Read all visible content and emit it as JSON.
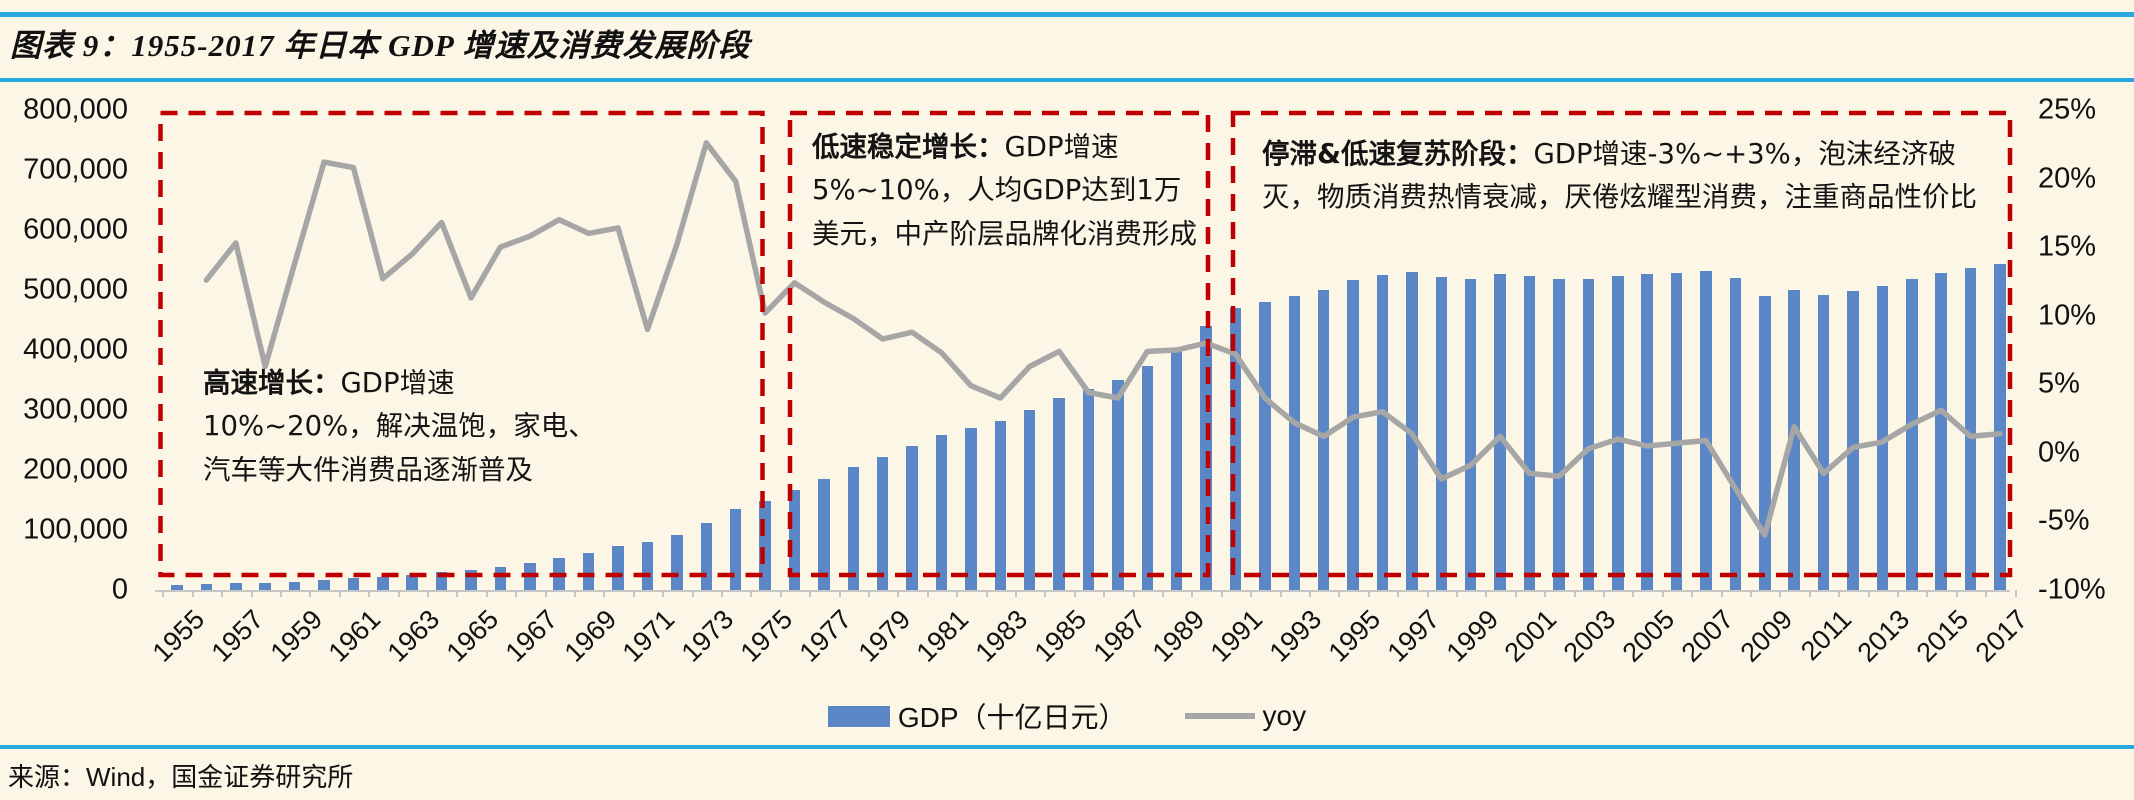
{
  "page": {
    "figure_title": "图表 9：1955-2017 年日本 GDP 增速及消费发展阶段",
    "source": "来源：Wind，国金证券研究所"
  },
  "colors": {
    "background": "#FCF6E6",
    "rule_blue": "#2AA7DF",
    "bar_blue": "#5B87C6",
    "line_gray": "#A6A6A6",
    "phase_box_red": "#C00000",
    "axis_gray": "#C6C6C6"
  },
  "chart_data": {
    "type": "bar+line combo",
    "title": "1955-2017 年日本 GDP 增速及消费发展阶段",
    "categories": [
      1955,
      1956,
      1957,
      1958,
      1959,
      1960,
      1961,
      1962,
      1963,
      1964,
      1965,
      1966,
      1967,
      1968,
      1969,
      1970,
      1971,
      1972,
      1973,
      1974,
      1975,
      1976,
      1977,
      1978,
      1979,
      1980,
      1981,
      1982,
      1983,
      1984,
      1985,
      1986,
      1987,
      1988,
      1989,
      1990,
      1991,
      1992,
      1993,
      1994,
      1995,
      1996,
      1997,
      1998,
      1999,
      2000,
      2001,
      2002,
      2003,
      2004,
      2005,
      2006,
      2007,
      2008,
      2009,
      2010,
      2011,
      2012,
      2013,
      2014,
      2015,
      2016,
      2017
    ],
    "series": [
      {
        "name": "GDP（十亿日元）",
        "type": "bar",
        "axis": "left",
        "values": [
          8600,
          9600,
          11100,
          11800,
          13400,
          16200,
          19600,
          22100,
          25300,
          29600,
          33000,
          38200,
          44700,
          53000,
          62200,
          73300,
          80700,
          92400,
          112500,
          134200,
          148300,
          166600,
          185600,
          204400,
          221500,
          240200,
          258000,
          270600,
          281800,
          300500,
          320400,
          335500,
          349800,
          374000,
          401000,
          440000,
          470000,
          480000,
          490000,
          500000,
          516000,
          525000,
          530000,
          522000,
          519000,
          526000,
          523000,
          518000,
          519000,
          524000,
          526000,
          529000,
          531000,
          520000,
          490000,
          500000,
          492000,
          499000,
          507000,
          518000,
          528000,
          536000,
          543000
        ]
      },
      {
        "name": "yoy",
        "type": "line",
        "axis": "right",
        "values": [
          null,
          12.6,
          15.3,
          6.3,
          13.8,
          21.2,
          20.8,
          12.7,
          14.5,
          16.8,
          11.3,
          15.0,
          15.8,
          17.0,
          16.0,
          16.4,
          9.0,
          15.2,
          22.6,
          19.8,
          10.2,
          12.4,
          11.0,
          9.8,
          8.3,
          8.8,
          7.3,
          4.9,
          4.0,
          6.3,
          7.4,
          4.4,
          4.0,
          7.4,
          7.5,
          8.0,
          7.2,
          4.0,
          2.2,
          1.2,
          2.6,
          3.0,
          1.4,
          -1.9,
          -0.9,
          1.2,
          -1.5,
          -1.7,
          0.3,
          1.0,
          0.5,
          0.7,
          0.9,
          -2.6,
          -6.0,
          1.9,
          -1.5,
          0.4,
          0.8,
          2.1,
          3.1,
          1.2,
          1.4
        ]
      }
    ],
    "left_axis": {
      "min": 0,
      "max": 800000,
      "ticks": [
        "800,000",
        "700,000",
        "600,000",
        "500,000",
        "400,000",
        "300,000",
        "200,000",
        "100,000",
        "0"
      ]
    },
    "right_axis": {
      "min": -10,
      "max": 25,
      "ticks": [
        "25%",
        "20%",
        "15%",
        "10%",
        "5%",
        "0%",
        "-5%",
        "-10%"
      ]
    },
    "x_axis": {
      "label_every_n_years": 2,
      "label_rotation_deg": -45,
      "grid": false
    },
    "legend": {
      "position": "bottom",
      "items": [
        {
          "label": "GDP（十亿日元）"
        },
        {
          "label": "yoy"
        }
      ]
    },
    "annotations": [
      {
        "lead": "高速增长：",
        "text": "GDP增速10%~20%，解决温饱，家电、汽车等大件消费品逐渐普及",
        "phase_years": "1955-1974"
      },
      {
        "lead": "低速稳定增长：",
        "text": "GDP增速5%~10%，人均GDP达到1万美元，中产阶层品牌化消费形成",
        "phase_years": "1976-1990"
      },
      {
        "lead": "停滞&低速复苏阶段：",
        "text": "GDP增速-3%~+3%，泡沫经济破灭，物质消费热情衰减，厌倦炫耀型消费，注重商品性价比",
        "phase_years": "1991-2017"
      }
    ]
  }
}
